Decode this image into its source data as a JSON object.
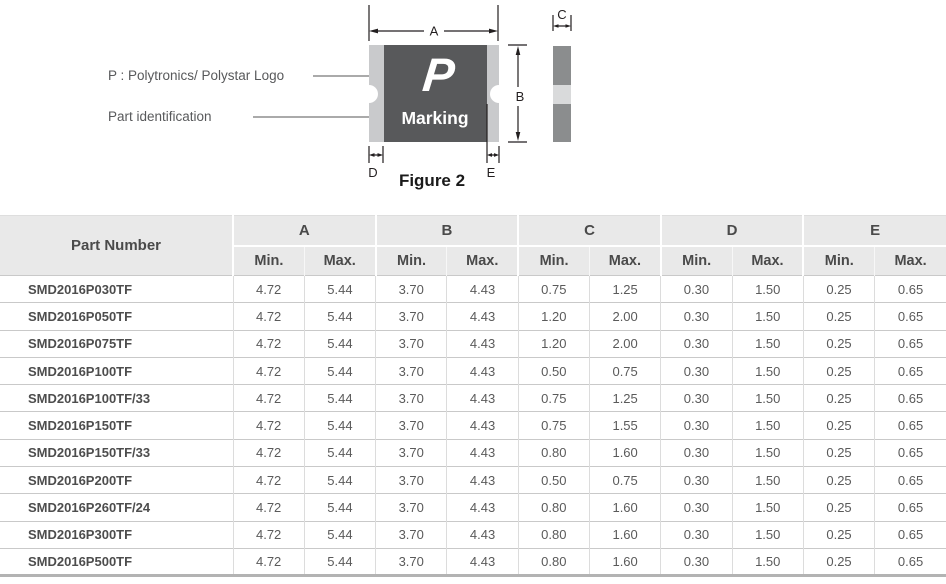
{
  "figure": {
    "caption": "Figure 2",
    "logo_label": "P : Polytronics/ Polystar Logo",
    "part_id_label": "Part identification",
    "logo_glyph": "P",
    "marking_text": "Marking",
    "dim_a": "A",
    "dim_b": "B",
    "dim_c": "C",
    "dim_d": "D",
    "dim_e": "E",
    "colors": {
      "chip_body": "#58595b",
      "chip_terminal": "#c9cacc",
      "side_gray": "#8b8d8e",
      "side_band": "#d9dadb"
    }
  },
  "table": {
    "part_number_header": "Part Number",
    "groups": [
      "A",
      "B",
      "C",
      "D",
      "E"
    ],
    "sub_headers": [
      "Min.",
      "Max."
    ],
    "rows": [
      {
        "part": "SMD2016P030TF",
        "values": [
          "4.72",
          "5.44",
          "3.70",
          "4.43",
          "0.75",
          "1.25",
          "0.30",
          "1.50",
          "0.25",
          "0.65"
        ]
      },
      {
        "part": "SMD2016P050TF",
        "values": [
          "4.72",
          "5.44",
          "3.70",
          "4.43",
          "1.20",
          "2.00",
          "0.30",
          "1.50",
          "0.25",
          "0.65"
        ]
      },
      {
        "part": "SMD2016P075TF",
        "values": [
          "4.72",
          "5.44",
          "3.70",
          "4.43",
          "1.20",
          "2.00",
          "0.30",
          "1.50",
          "0.25",
          "0.65"
        ]
      },
      {
        "part": "SMD2016P100TF",
        "values": [
          "4.72",
          "5.44",
          "3.70",
          "4.43",
          "0.50",
          "0.75",
          "0.30",
          "1.50",
          "0.25",
          "0.65"
        ]
      },
      {
        "part": "SMD2016P100TF/33",
        "values": [
          "4.72",
          "5.44",
          "3.70",
          "4.43",
          "0.75",
          "1.25",
          "0.30",
          "1.50",
          "0.25",
          "0.65"
        ]
      },
      {
        "part": "SMD2016P150TF",
        "values": [
          "4.72",
          "5.44",
          "3.70",
          "4.43",
          "0.75",
          "1.55",
          "0.30",
          "1.50",
          "0.25",
          "0.65"
        ]
      },
      {
        "part": "SMD2016P150TF/33",
        "values": [
          "4.72",
          "5.44",
          "3.70",
          "4.43",
          "0.80",
          "1.60",
          "0.30",
          "1.50",
          "0.25",
          "0.65"
        ]
      },
      {
        "part": "SMD2016P200TF",
        "values": [
          "4.72",
          "5.44",
          "3.70",
          "4.43",
          "0.50",
          "0.75",
          "0.30",
          "1.50",
          "0.25",
          "0.65"
        ]
      },
      {
        "part": "SMD2016P260TF/24",
        "values": [
          "4.72",
          "5.44",
          "3.70",
          "4.43",
          "0.80",
          "1.60",
          "0.30",
          "1.50",
          "0.25",
          "0.65"
        ]
      },
      {
        "part": "SMD2016P300TF",
        "values": [
          "4.72",
          "5.44",
          "3.70",
          "4.43",
          "0.80",
          "1.60",
          "0.30",
          "1.50",
          "0.25",
          "0.65"
        ]
      },
      {
        "part": "SMD2016P500TF",
        "values": [
          "4.72",
          "5.44",
          "3.70",
          "4.43",
          "0.80",
          "1.60",
          "0.30",
          "1.50",
          "0.25",
          "0.65"
        ]
      }
    ]
  }
}
